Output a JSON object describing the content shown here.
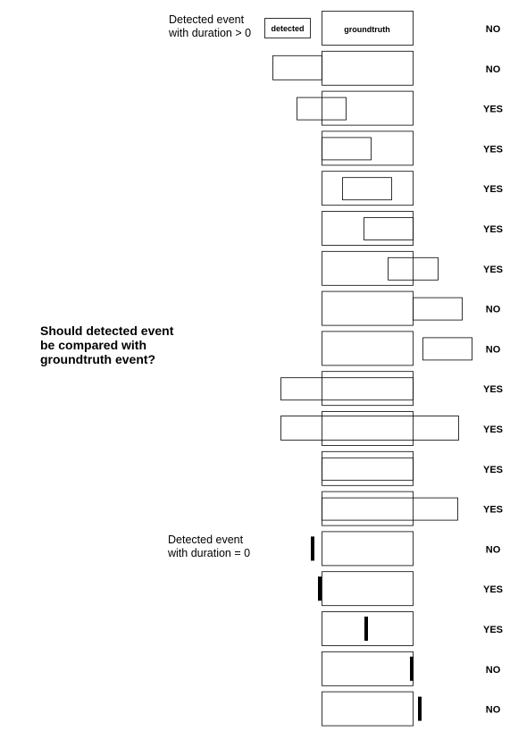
{
  "labels": {
    "nonzero_duration": "Detected event\nwith duration > 0",
    "zero_duration": "Detected event\nwith duration = 0",
    "question": "Should detected event\nbe compared with\ngroundtruth event?",
    "detected_box": "detected",
    "groundtruth_box": "groundtruth"
  },
  "cases": [
    {
      "kind": "interval",
      "answer": "NO"
    },
    {
      "kind": "interval",
      "answer": "NO"
    },
    {
      "kind": "interval",
      "answer": "YES"
    },
    {
      "kind": "interval",
      "answer": "YES"
    },
    {
      "kind": "interval",
      "answer": "YES"
    },
    {
      "kind": "interval",
      "answer": "YES"
    },
    {
      "kind": "interval",
      "answer": "YES"
    },
    {
      "kind": "interval",
      "answer": "NO"
    },
    {
      "kind": "interval",
      "answer": "NO"
    },
    {
      "kind": "interval",
      "answer": "YES"
    },
    {
      "kind": "interval",
      "answer": "YES"
    },
    {
      "kind": "interval",
      "answer": "YES"
    },
    {
      "kind": "interval",
      "answer": "YES"
    },
    {
      "kind": "point",
      "answer": "NO"
    },
    {
      "kind": "point",
      "answer": "YES"
    },
    {
      "kind": "point",
      "answer": "YES"
    },
    {
      "kind": "point",
      "answer": "NO"
    },
    {
      "kind": "point",
      "answer": "NO"
    }
  ]
}
